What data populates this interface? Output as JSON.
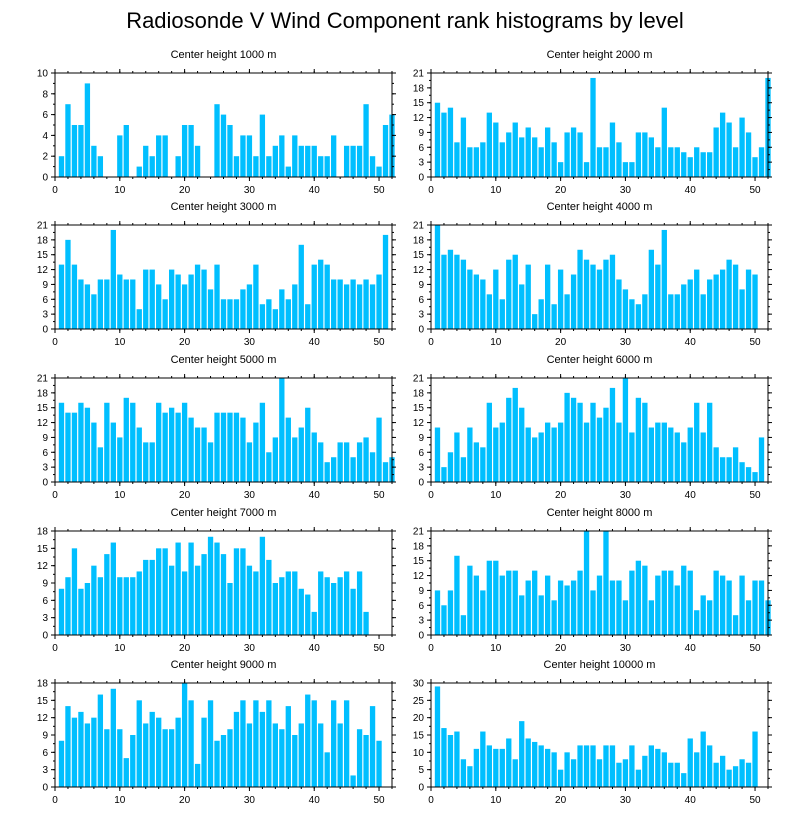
{
  "page_title": "Radiosonde V Wind Component rank histograms by level",
  "style": {
    "bar_color": "#00BFFF",
    "axis_color": "#000000"
  },
  "chart_data": [
    {
      "type": "bar",
      "title": "Center height 1000 m",
      "xlim": [
        0,
        52
      ],
      "ylim": [
        0,
        10
      ],
      "xticks": [
        0,
        10,
        20,
        30,
        40,
        50
      ],
      "yticks": [
        0,
        2,
        4,
        6,
        8,
        10
      ],
      "values": [
        2,
        7,
        5,
        5,
        9,
        3,
        2,
        0,
        0,
        4,
        5,
        0,
        1,
        3,
        2,
        4,
        4,
        0,
        2,
        5,
        5,
        3,
        0,
        0,
        7,
        6,
        5,
        2,
        4,
        4,
        2,
        6,
        2,
        3,
        4,
        1,
        4,
        3,
        3,
        3,
        2,
        2,
        4,
        0,
        3,
        3,
        3,
        7,
        2,
        1,
        5,
        6
      ]
    },
    {
      "type": "bar",
      "title": "Center height 2000 m",
      "xlim": [
        0,
        52
      ],
      "ylim": [
        0,
        21
      ],
      "xticks": [
        0,
        10,
        20,
        30,
        40,
        50
      ],
      "yticks": [
        0,
        3,
        6,
        9,
        12,
        15,
        18,
        21
      ],
      "values": [
        15,
        13,
        14,
        7,
        12,
        6,
        6,
        7,
        13,
        11,
        7,
        9,
        11,
        8,
        10,
        8,
        6,
        10,
        7,
        3,
        9,
        10,
        9,
        3,
        20,
        6,
        6,
        11,
        7,
        3,
        3,
        9,
        9,
        8,
        6,
        14,
        6,
        6,
        5,
        4,
        6,
        5,
        5,
        10,
        13,
        11,
        6,
        12,
        9,
        4,
        6,
        20
      ]
    },
    {
      "type": "bar",
      "title": "Center height 3000 m",
      "xlim": [
        0,
        52
      ],
      "ylim": [
        0,
        21
      ],
      "xticks": [
        0,
        10,
        20,
        30,
        40,
        50
      ],
      "yticks": [
        0,
        3,
        6,
        9,
        12,
        15,
        18,
        21
      ],
      "values": [
        13,
        18,
        13,
        10,
        9,
        7,
        10,
        10,
        20,
        11,
        10,
        10,
        4,
        12,
        12,
        9,
        6,
        12,
        11,
        9,
        11,
        13,
        12,
        8,
        13,
        6,
        6,
        6,
        8,
        9,
        13,
        5,
        6,
        4,
        8,
        6,
        9,
        17,
        5,
        13,
        14,
        13,
        10,
        10,
        9,
        10,
        9,
        10,
        9,
        11,
        19
      ]
    },
    {
      "type": "bar",
      "title": "Center height 4000 m",
      "xlim": [
        0,
        52
      ],
      "ylim": [
        0,
        21
      ],
      "xticks": [
        0,
        10,
        20,
        30,
        40,
        50
      ],
      "yticks": [
        0,
        3,
        6,
        9,
        12,
        15,
        18,
        21
      ],
      "values": [
        21,
        15,
        16,
        15,
        14,
        12,
        11,
        10,
        7,
        12,
        6,
        14,
        15,
        9,
        13,
        3,
        6,
        13,
        5,
        12,
        7,
        11,
        16,
        14,
        13,
        12,
        14,
        15,
        10,
        8,
        6,
        5,
        7,
        16,
        13,
        20,
        7,
        7,
        9,
        10,
        12,
        7,
        10,
        11,
        12,
        14,
        13,
        8,
        12,
        11
      ]
    },
    {
      "type": "bar",
      "title": "Center height 5000 m",
      "xlim": [
        0,
        52
      ],
      "ylim": [
        0,
        21
      ],
      "xticks": [
        0,
        10,
        20,
        30,
        40,
        50
      ],
      "yticks": [
        0,
        3,
        6,
        9,
        12,
        15,
        18,
        21
      ],
      "values": [
        16,
        14,
        14,
        16,
        15,
        12,
        7,
        16,
        12,
        9,
        17,
        16,
        11,
        8,
        8,
        16,
        14,
        15,
        14,
        16,
        13,
        11,
        11,
        8,
        14,
        14,
        14,
        14,
        13,
        8,
        12,
        16,
        6,
        9,
        21,
        13,
        9,
        11,
        15,
        10,
        8,
        4,
        5,
        8,
        8,
        5,
        8,
        9,
        6,
        13,
        4,
        5
      ]
    },
    {
      "type": "bar",
      "title": "Center height 6000 m",
      "xlim": [
        0,
        52
      ],
      "ylim": [
        0,
        21
      ],
      "xticks": [
        0,
        10,
        20,
        30,
        40,
        50
      ],
      "yticks": [
        0,
        3,
        6,
        9,
        12,
        15,
        18,
        21
      ],
      "values": [
        11,
        3,
        6,
        10,
        5,
        11,
        8,
        7,
        16,
        11,
        12,
        17,
        19,
        15,
        11,
        9,
        10,
        12,
        11,
        12,
        18,
        17,
        16,
        12,
        16,
        13,
        15,
        19,
        12,
        21,
        10,
        17,
        16,
        11,
        12,
        12,
        11,
        10,
        8,
        11,
        16,
        10,
        16,
        7,
        5,
        5,
        7,
        4,
        3,
        2,
        9
      ]
    },
    {
      "type": "bar",
      "title": "Center height 7000 m",
      "xlim": [
        0,
        52
      ],
      "ylim": [
        0,
        18
      ],
      "xticks": [
        0,
        10,
        20,
        30,
        40,
        50
      ],
      "yticks": [
        0,
        3,
        6,
        9,
        12,
        15,
        18
      ],
      "values": [
        8,
        10,
        15,
        8,
        9,
        12,
        10,
        14,
        16,
        10,
        10,
        10,
        11,
        13,
        13,
        15,
        15,
        12,
        16,
        11,
        16,
        12,
        14,
        17,
        16,
        14,
        9,
        15,
        15,
        12,
        11,
        17,
        13,
        9,
        10,
        11,
        11,
        8,
        7,
        4,
        11,
        10,
        9,
        10,
        11,
        8,
        11,
        4
      ]
    },
    {
      "type": "bar",
      "title": "Center height 8000 m",
      "xlim": [
        0,
        52
      ],
      "ylim": [
        0,
        21
      ],
      "xticks": [
        0,
        10,
        20,
        30,
        40,
        50
      ],
      "yticks": [
        0,
        3,
        6,
        9,
        12,
        15,
        18,
        21
      ],
      "values": [
        9,
        6,
        9,
        16,
        4,
        14,
        12,
        9,
        15,
        15,
        12,
        13,
        13,
        8,
        11,
        13,
        8,
        12,
        7,
        11,
        10,
        11,
        13,
        21,
        9,
        12,
        21,
        11,
        11,
        7,
        13,
        15,
        14,
        7,
        12,
        13,
        13,
        10,
        14,
        13,
        5,
        8,
        7,
        13,
        12,
        11,
        4,
        12,
        7,
        11,
        11,
        7
      ]
    },
    {
      "type": "bar",
      "title": "Center height 9000 m",
      "xlim": [
        0,
        52
      ],
      "ylim": [
        0,
        18
      ],
      "xticks": [
        0,
        10,
        20,
        30,
        40,
        50
      ],
      "yticks": [
        0,
        3,
        6,
        9,
        12,
        15,
        18
      ],
      "values": [
        8,
        14,
        12,
        13,
        11,
        12,
        16,
        10,
        17,
        10,
        5,
        9,
        15,
        11,
        13,
        12,
        10,
        10,
        12,
        18,
        15,
        4,
        12,
        15,
        8,
        9,
        10,
        13,
        15,
        11,
        15,
        13,
        15,
        11,
        10,
        14,
        9,
        11,
        16,
        15,
        11,
        6,
        15,
        11,
        15,
        2,
        10,
        9,
        14,
        8
      ]
    },
    {
      "type": "bar",
      "title": "Center height 10000 m",
      "xlim": [
        0,
        52
      ],
      "ylim": [
        0,
        30
      ],
      "xticks": [
        0,
        10,
        20,
        30,
        40,
        50
      ],
      "yticks": [
        0,
        5,
        10,
        15,
        20,
        25,
        30
      ],
      "values": [
        29,
        17,
        15,
        16,
        8,
        6,
        11,
        16,
        12,
        11,
        11,
        14,
        8,
        19,
        14,
        13,
        12,
        11,
        10,
        5,
        10,
        8,
        12,
        12,
        12,
        8,
        12,
        12,
        7,
        8,
        12,
        5,
        9,
        12,
        11,
        10,
        7,
        7,
        4,
        14,
        10,
        16,
        12,
        7,
        9,
        5,
        6,
        8,
        7,
        16
      ]
    }
  ]
}
